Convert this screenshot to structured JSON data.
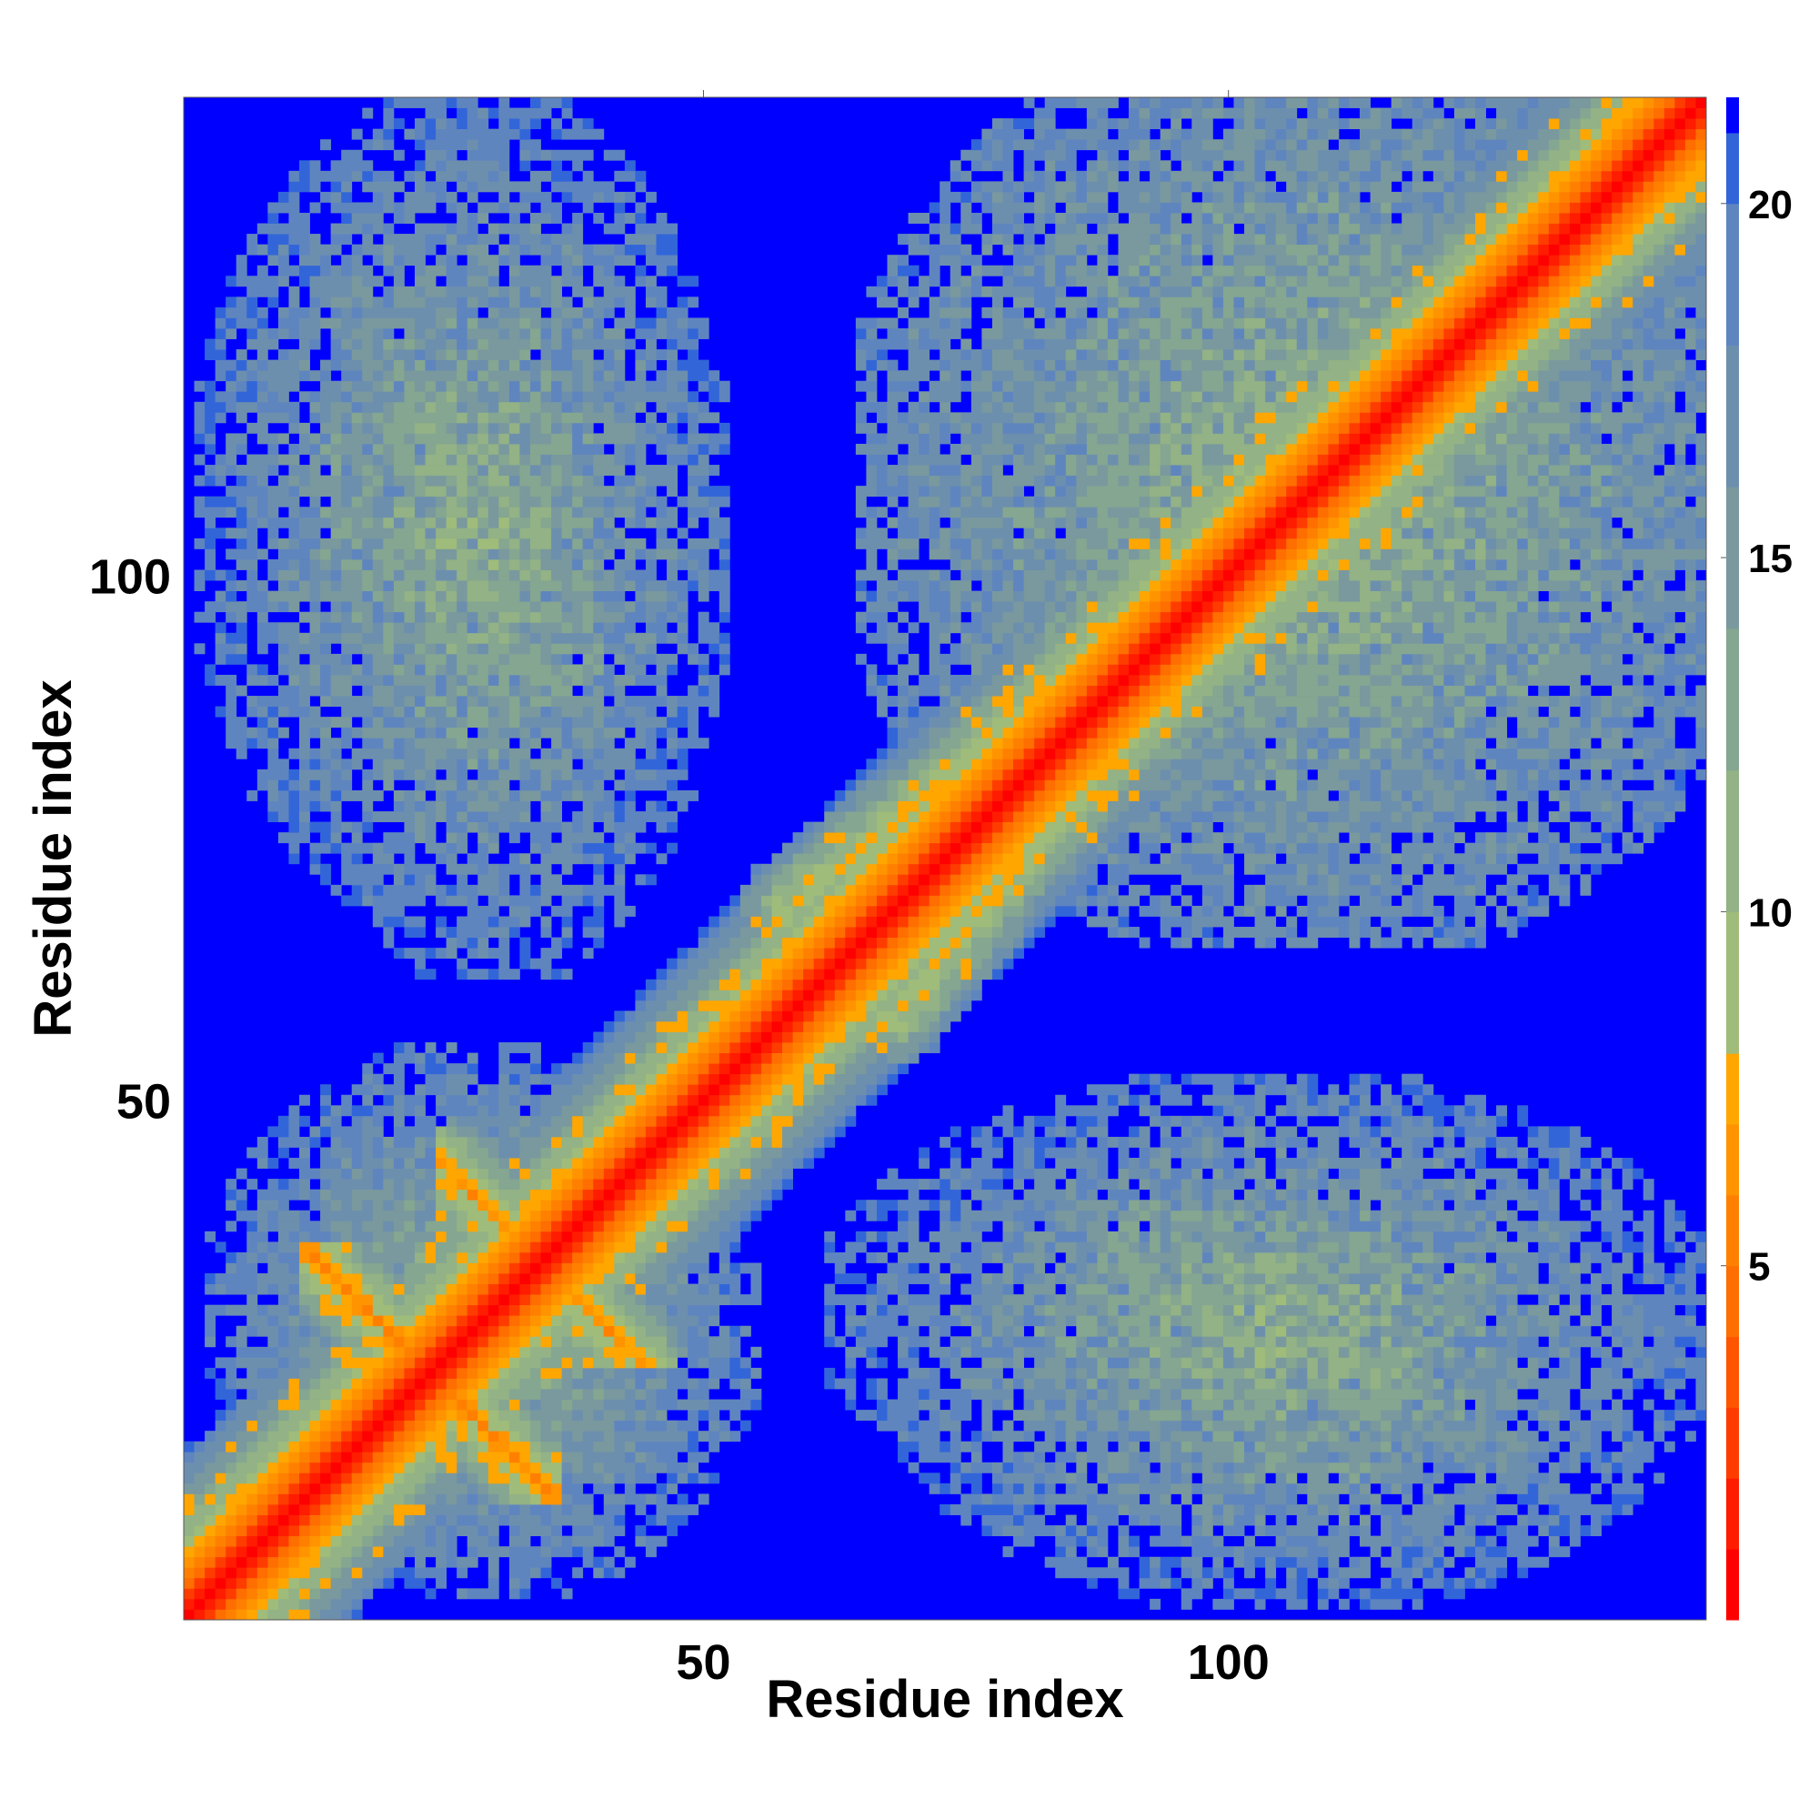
{
  "chart_data": {
    "type": "heatmap",
    "title": "",
    "xlabel": "Residue index",
    "ylabel": "Residue index",
    "n_residues": 145,
    "xlim": [
      0.5,
      145.5
    ],
    "ylim": [
      0.5,
      145.5
    ],
    "x_ticks": [
      50,
      100
    ],
    "y_ticks": [
      50,
      100
    ],
    "colorbar": {
      "range": [
        0,
        21.5
      ],
      "ticks": [
        5,
        10,
        15,
        20
      ],
      "bands": [
        {
          "from": 0,
          "to": 1,
          "color": "#ff0000"
        },
        {
          "from": 1,
          "to": 2,
          "color": "#ff1c00"
        },
        {
          "from": 2,
          "to": 3,
          "color": "#ff3c00"
        },
        {
          "from": 3,
          "to": 4,
          "color": "#ff5500"
        },
        {
          "from": 4,
          "to": 5,
          "color": "#ff6e00"
        },
        {
          "from": 5,
          "to": 6,
          "color": "#ff8000"
        },
        {
          "from": 6,
          "to": 7,
          "color": "#ff9400"
        },
        {
          "from": 7,
          "to": 8,
          "color": "#ffa600"
        },
        {
          "from": 8,
          "to": 10,
          "color": "#9fbc7a"
        },
        {
          "from": 10,
          "to": 12,
          "color": "#93b285"
        },
        {
          "from": 12,
          "to": 14,
          "color": "#85a690"
        },
        {
          "from": 14,
          "to": 16,
          "color": "#79999e"
        },
        {
          "from": 16,
          "to": 18,
          "color": "#6d8fae"
        },
        {
          "from": 18,
          "to": 20,
          "color": "#5f85bf"
        },
        {
          "from": 20,
          "to": 21,
          "color": "#3266d8"
        },
        {
          "from": 21,
          "to": 21.5,
          "color": "#0000ff"
        }
      ]
    },
    "background_color": "#0000ff",
    "structure": {
      "features": [
        {
          "kind": "diagonal",
          "description": "contact diagonal, distance rises with |i-j|"
        },
        {
          "kind": "cross-strand",
          "center": [
            24,
            24
          ],
          "span": 12,
          "value": 6
        },
        {
          "kind": "cross-strand",
          "center": [
            32,
            37
          ],
          "span": 9,
          "value": 6
        },
        {
          "kind": "parallel-band",
          "from": [
            58,
            68
          ],
          "to": [
            92,
            96
          ],
          "value": 11
        },
        {
          "kind": "domain-block",
          "x": [
            2,
            55
          ],
          "y": [
            60,
            145
          ],
          "value": 15
        },
        {
          "kind": "domain-block",
          "x": [
            62,
            145
          ],
          "y": [
            8,
            52
          ],
          "value": 15
        },
        {
          "kind": "domain-block",
          "x": [
            65,
            145
          ],
          "y": [
            65,
            145
          ],
          "value": 14
        }
      ]
    }
  }
}
